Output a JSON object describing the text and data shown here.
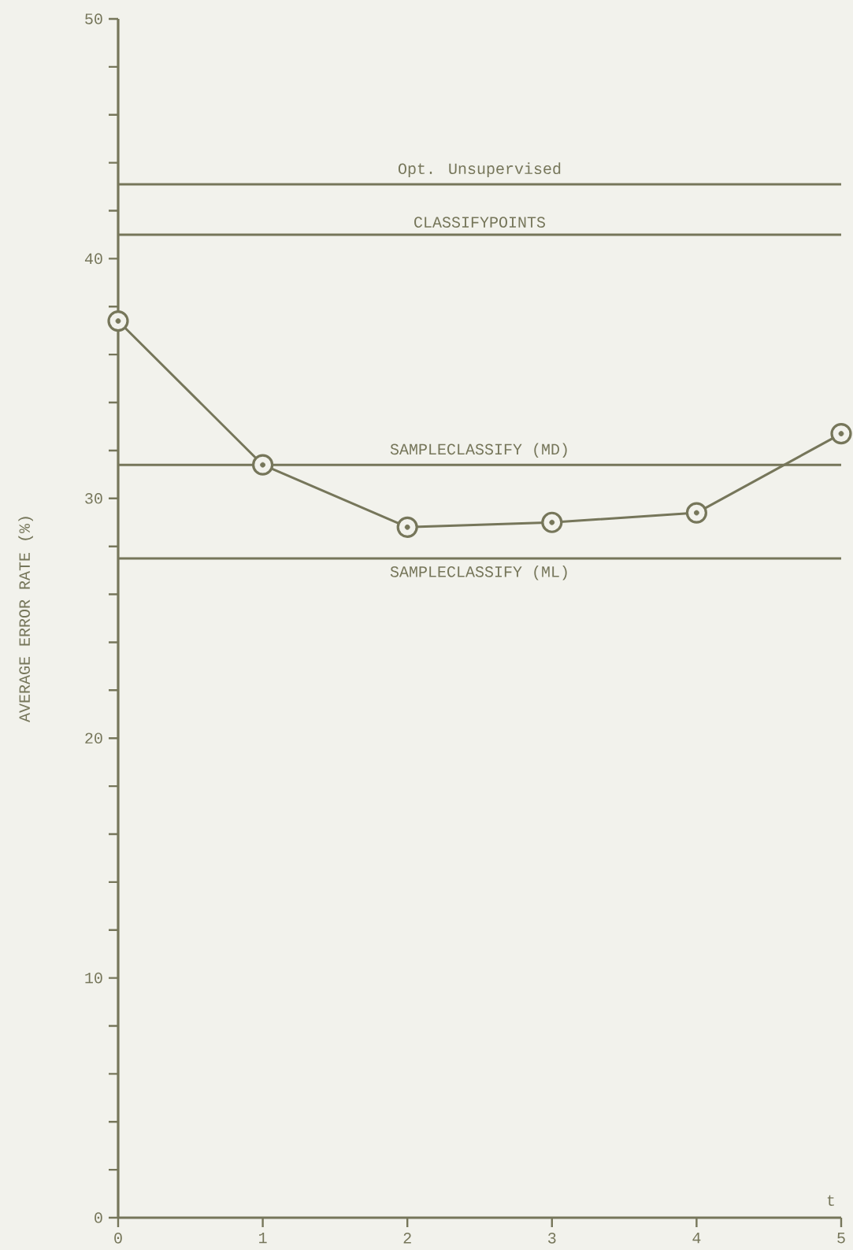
{
  "chart_data": {
    "type": "line",
    "xlabel": "t",
    "ylabel": "AVERAGE ERROR RATE (%)",
    "x": [
      0,
      1,
      2,
      3,
      4,
      5
    ],
    "series": [
      {
        "color": "#76765a",
        "values": [
          37.4,
          31.4,
          28.8,
          29.0,
          29.4,
          32.7
        ]
      }
    ],
    "xlim": [
      0,
      5
    ],
    "xticks": [
      0,
      1,
      2,
      3,
      4,
      5
    ],
    "ylim": [
      0,
      50
    ],
    "yticks": [
      0,
      {
        "value": 2,
        "label": null
      },
      {
        "value": 4,
        "label": null
      },
      {
        "value": 6,
        "label": null
      },
      {
        "value": 8,
        "label": null
      },
      10,
      {
        "value": 12,
        "label": null
      },
      {
        "value": 14,
        "label": null
      },
      {
        "value": 16,
        "label": null
      },
      {
        "value": 18,
        "label": null
      },
      20,
      {
        "value": 22,
        "label": null
      },
      {
        "value": 24,
        "label": null
      },
      {
        "value": 26,
        "label": null
      },
      {
        "value": 28,
        "label": null
      },
      30,
      {
        "value": 32,
        "label": null
      },
      {
        "value": 34,
        "label": null
      },
      {
        "value": 36,
        "label": null
      },
      {
        "value": 38,
        "label": null
      },
      40,
      {
        "value": 42,
        "label": null
      },
      {
        "value": 44,
        "label": null
      },
      {
        "value": 46,
        "label": null
      },
      {
        "value": 48,
        "label": null
      },
      50
    ],
    "marker": "circle",
    "line_style": "solid",
    "ref_lines": [
      {
        "axis": "y",
        "value": 43.1,
        "label": "Opt. Unsupervised",
        "color": "#76765a"
      },
      {
        "axis": "y",
        "value": 41.0,
        "label": "CLASSIFYPOINTS",
        "color": "#76765a"
      },
      {
        "axis": "y",
        "value": 31.4,
        "label": "SAMPLECLASSIFY (MD)",
        "color": "#76765a"
      },
      {
        "axis": "y",
        "value": 27.5,
        "label": "SAMPLECLASSIFY (ML)",
        "color": "#76765a"
      }
    ]
  }
}
